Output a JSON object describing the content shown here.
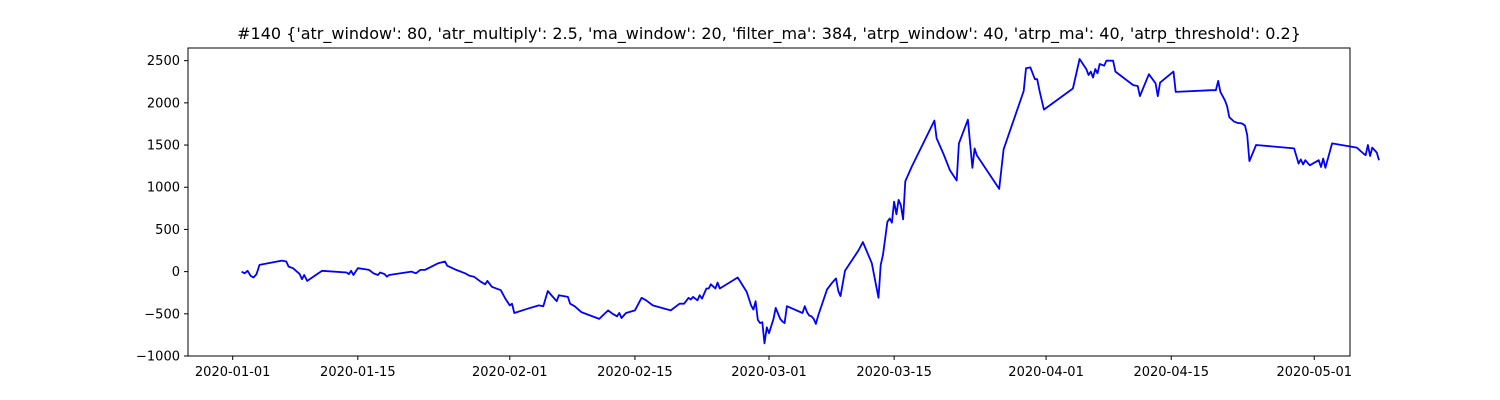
{
  "chart_data": {
    "type": "line",
    "title": "#140 {'atr_window': 80, 'atr_multiply': 2.5, 'ma_window': 20, 'filter_ma': 384, 'atrp_window': 40, 'atrp_ma': 40, 'atrp_threshold': 0.2}",
    "xlabel": "",
    "ylabel": "",
    "xlim": [
      "2019-12-27",
      "2020-05-05"
    ],
    "ylim": [
      -1000,
      2650
    ],
    "x_ticks": [
      "2020-01-01",
      "2020-01-15",
      "2020-02-01",
      "2020-02-15",
      "2020-03-01",
      "2020-03-15",
      "2020-04-01",
      "2020-04-15",
      "2020-05-01"
    ],
    "y_ticks": [
      -1000,
      -500,
      0,
      500,
      1000,
      1500,
      2000,
      2500
    ],
    "grid": false,
    "series": [
      {
        "color": "#0000ff",
        "points": [
          [
            "2020-01-02T00:00",
            0
          ],
          [
            "2020-01-02T08:00",
            -20
          ],
          [
            "2020-01-02T16:00",
            10
          ],
          [
            "2020-01-03T00:00",
            -50
          ],
          [
            "2020-01-03T08:00",
            -70
          ],
          [
            "2020-01-03T16:00",
            -30
          ],
          [
            "2020-01-04T00:00",
            80
          ],
          [
            "2020-01-06T12:00",
            130
          ],
          [
            "2020-01-07T00:00",
            120
          ],
          [
            "2020-01-07T06:00",
            60
          ],
          [
            "2020-01-07T18:00",
            40
          ],
          [
            "2020-01-08T12:00",
            -30
          ],
          [
            "2020-01-08T18:00",
            -90
          ],
          [
            "2020-01-09T00:00",
            -40
          ],
          [
            "2020-01-09T08:00",
            -110
          ],
          [
            "2020-01-11T00:00",
            10
          ],
          [
            "2020-01-13T18:00",
            -10
          ],
          [
            "2020-01-14T00:00",
            -30
          ],
          [
            "2020-01-14T06:00",
            10
          ],
          [
            "2020-01-14T12:00",
            -40
          ],
          [
            "2020-01-15T00:00",
            40
          ],
          [
            "2020-01-15T18:00",
            30
          ],
          [
            "2020-01-16T06:00",
            20
          ],
          [
            "2020-01-16T18:00",
            -20
          ],
          [
            "2020-01-17T06:00",
            -40
          ],
          [
            "2020-01-17T12:00",
            -10
          ],
          [
            "2020-01-18T00:00",
            -30
          ],
          [
            "2020-01-18T06:00",
            -60
          ],
          [
            "2020-01-18T12:00",
            -40
          ],
          [
            "2020-01-21T00:00",
            0
          ],
          [
            "2020-01-21T12:00",
            -20
          ],
          [
            "2020-01-22T00:00",
            20
          ],
          [
            "2020-01-22T12:00",
            20
          ],
          [
            "2020-01-24T00:00",
            100
          ],
          [
            "2020-01-24T18:00",
            120
          ],
          [
            "2020-01-25T00:00",
            70
          ],
          [
            "2020-01-26T00:00",
            20
          ],
          [
            "2020-01-27T00:00",
            -20
          ],
          [
            "2020-01-27T12:00",
            -50
          ],
          [
            "2020-01-28T00:00",
            -60
          ],
          [
            "2020-01-28T18:00",
            -120
          ],
          [
            "2020-01-29T06:00",
            -150
          ],
          [
            "2020-01-29T12:00",
            -110
          ],
          [
            "2020-01-30T00:00",
            -180
          ],
          [
            "2020-01-31T00:00",
            -220
          ],
          [
            "2020-01-31T12:00",
            -320
          ],
          [
            "2020-02-01T00:00",
            -400
          ],
          [
            "2020-02-01T06:00",
            -380
          ],
          [
            "2020-02-01T12:00",
            -490
          ],
          [
            "2020-02-03T00:00",
            -440
          ],
          [
            "2020-02-04T06:00",
            -400
          ],
          [
            "2020-02-04T18:00",
            -410
          ],
          [
            "2020-02-05T06:00",
            -230
          ],
          [
            "2020-02-05T18:00",
            -290
          ],
          [
            "2020-02-06T06:00",
            -350
          ],
          [
            "2020-02-06T12:00",
            -280
          ],
          [
            "2020-02-07T12:00",
            -300
          ],
          [
            "2020-02-07T18:00",
            -380
          ],
          [
            "2020-02-08T06:00",
            -410
          ],
          [
            "2020-02-09T00:00",
            -480
          ],
          [
            "2020-02-11T00:00",
            -560
          ],
          [
            "2020-02-12T00:00",
            -460
          ],
          [
            "2020-02-12T12:00",
            -500
          ],
          [
            "2020-02-13T00:00",
            -530
          ],
          [
            "2020-02-13T06:00",
            -490
          ],
          [
            "2020-02-13T12:00",
            -550
          ],
          [
            "2020-02-14T00:00",
            -490
          ],
          [
            "2020-02-15T00:00",
            -460
          ],
          [
            "2020-02-15T18:00",
            -310
          ],
          [
            "2020-02-16T06:00",
            -340
          ],
          [
            "2020-02-17T00:00",
            -400
          ],
          [
            "2020-02-19T00:00",
            -460
          ],
          [
            "2020-02-20T00:00",
            -380
          ],
          [
            "2020-02-20T12:00",
            -380
          ],
          [
            "2020-02-21T00:00",
            -310
          ],
          [
            "2020-02-21T06:00",
            -330
          ],
          [
            "2020-02-21T12:00",
            -300
          ],
          [
            "2020-02-22T00:00",
            -340
          ],
          [
            "2020-02-22T06:00",
            -280
          ],
          [
            "2020-02-22T12:00",
            -320
          ],
          [
            "2020-02-23T00:00",
            -200
          ],
          [
            "2020-02-23T06:00",
            -200
          ],
          [
            "2020-02-23T12:00",
            -150
          ],
          [
            "2020-02-24T00:00",
            -200
          ],
          [
            "2020-02-24T06:00",
            -130
          ],
          [
            "2020-02-24T12:00",
            -200
          ],
          [
            "2020-02-26T12:00",
            -70
          ],
          [
            "2020-02-27T12:00",
            -240
          ],
          [
            "2020-02-28T00:00",
            -400
          ],
          [
            "2020-02-28T06:00",
            -450
          ],
          [
            "2020-02-28T12:00",
            -350
          ],
          [
            "2020-02-28T18:00",
            -570
          ],
          [
            "2020-02-29T00:00",
            -610
          ],
          [
            "2020-02-29T06:00",
            -600
          ],
          [
            "2020-02-29T12:00",
            -850
          ],
          [
            "2020-02-29T18:00",
            -660
          ],
          [
            "2020-03-01T00:00",
            -730
          ],
          [
            "2020-03-01T12:00",
            -560
          ],
          [
            "2020-03-01T18:00",
            -430
          ],
          [
            "2020-03-02T06:00",
            -560
          ],
          [
            "2020-03-02T12:00",
            -590
          ],
          [
            "2020-03-02T18:00",
            -610
          ],
          [
            "2020-03-03T00:00",
            -410
          ],
          [
            "2020-03-04T18:00",
            -490
          ],
          [
            "2020-03-05T00:00",
            -410
          ],
          [
            "2020-03-05T06:00",
            -480
          ],
          [
            "2020-03-05T12:00",
            -520
          ],
          [
            "2020-03-05T18:00",
            -530
          ],
          [
            "2020-03-06T00:00",
            -560
          ],
          [
            "2020-03-06T06:00",
            -620
          ],
          [
            "2020-03-06T12:00",
            -520
          ],
          [
            "2020-03-07T12:00",
            -210
          ],
          [
            "2020-03-08T00:00",
            -140
          ],
          [
            "2020-03-08T12:00",
            -80
          ],
          [
            "2020-03-08T18:00",
            -230
          ],
          [
            "2020-03-09T00:00",
            -290
          ],
          [
            "2020-03-09T12:00",
            10
          ],
          [
            "2020-03-11T00:00",
            250
          ],
          [
            "2020-03-11T12:00",
            350
          ],
          [
            "2020-03-12T12:00",
            100
          ],
          [
            "2020-03-13T06:00",
            -310
          ],
          [
            "2020-03-13T12:00",
            80
          ],
          [
            "2020-03-13T18:00",
            200
          ],
          [
            "2020-03-14T06:00",
            590
          ],
          [
            "2020-03-14T12:00",
            630
          ],
          [
            "2020-03-14T18:00",
            580
          ],
          [
            "2020-03-15T00:00",
            830
          ],
          [
            "2020-03-15T06:00",
            680
          ],
          [
            "2020-03-15T12:00",
            850
          ],
          [
            "2020-03-15T18:00",
            790
          ],
          [
            "2020-03-16T00:00",
            620
          ],
          [
            "2020-03-16T06:00",
            1070
          ],
          [
            "2020-03-17T00:00",
            1250
          ],
          [
            "2020-03-19T12:00",
            1790
          ],
          [
            "2020-03-19T18:00",
            1580
          ],
          [
            "2020-03-20T12:00",
            1400
          ],
          [
            "2020-03-21T06:00",
            1200
          ],
          [
            "2020-03-22T00:00",
            1080
          ],
          [
            "2020-03-22T06:00",
            1520
          ],
          [
            "2020-03-23T06:00",
            1800
          ],
          [
            "2020-03-23T18:00",
            1230
          ],
          [
            "2020-03-24T00:00",
            1460
          ],
          [
            "2020-03-24T06:00",
            1380
          ],
          [
            "2020-03-26T18:00",
            980
          ],
          [
            "2020-03-27T06:00",
            1450
          ],
          [
            "2020-03-29T12:00",
            2140
          ],
          [
            "2020-03-29T18:00",
            2410
          ],
          [
            "2020-03-30T06:00",
            2420
          ],
          [
            "2020-03-30T18:00",
            2280
          ],
          [
            "2020-03-31T00:00",
            2280
          ],
          [
            "2020-03-31T06:00",
            2150
          ],
          [
            "2020-03-31T18:00",
            1920
          ],
          [
            "2020-04-04T00:00",
            2170
          ],
          [
            "2020-04-04T18:00",
            2520
          ],
          [
            "2020-04-05T12:00",
            2400
          ],
          [
            "2020-04-05T18:00",
            2330
          ],
          [
            "2020-04-06T00:00",
            2370
          ],
          [
            "2020-04-06T06:00",
            2300
          ],
          [
            "2020-04-06T12:00",
            2400
          ],
          [
            "2020-04-06T18:00",
            2350
          ],
          [
            "2020-04-07T00:00",
            2460
          ],
          [
            "2020-04-07T12:00",
            2440
          ],
          [
            "2020-04-07T18:00",
            2500
          ],
          [
            "2020-04-08T12:00",
            2500
          ],
          [
            "2020-04-08T18:00",
            2370
          ],
          [
            "2020-04-10T18:00",
            2210
          ],
          [
            "2020-04-11T06:00",
            2200
          ],
          [
            "2020-04-11T12:00",
            2080
          ],
          [
            "2020-04-12T12:00",
            2340
          ],
          [
            "2020-04-13T06:00",
            2230
          ],
          [
            "2020-04-13T12:00",
            2080
          ],
          [
            "2020-04-13T18:00",
            2240
          ],
          [
            "2020-04-15T06:00",
            2370
          ],
          [
            "2020-04-15T12:00",
            2130
          ],
          [
            "2020-04-19T12:00",
            2150
          ],
          [
            "2020-04-20T00:00",
            2150
          ],
          [
            "2020-04-20T06:00",
            2260
          ],
          [
            "2020-04-20T12:00",
            2130
          ],
          [
            "2020-04-21T00:00",
            2030
          ],
          [
            "2020-04-21T06:00",
            1960
          ],
          [
            "2020-04-21T12:00",
            1830
          ],
          [
            "2020-04-22T00:00",
            1780
          ],
          [
            "2020-04-22T06:00",
            1770
          ],
          [
            "2020-04-22T12:00",
            1760
          ],
          [
            "2020-04-22T18:00",
            1760
          ],
          [
            "2020-04-23T00:00",
            1750
          ],
          [
            "2020-04-23T06:00",
            1730
          ],
          [
            "2020-04-23T12:00",
            1620
          ],
          [
            "2020-04-23T18:00",
            1310
          ],
          [
            "2020-04-24T12:00",
            1500
          ],
          [
            "2020-04-28T18:00",
            1460
          ],
          [
            "2020-04-29T06:00",
            1280
          ],
          [
            "2020-04-29T12:00",
            1330
          ],
          [
            "2020-04-29T18:00",
            1270
          ],
          [
            "2020-04-30T00:00",
            1320
          ],
          [
            "2020-04-30T12:00",
            1260
          ],
          [
            "2020-05-01T12:00",
            1320
          ],
          [
            "2020-05-01T18:00",
            1240
          ],
          [
            "2020-05-02T00:00",
            1340
          ],
          [
            "2020-05-02T06:00",
            1230
          ],
          [
            "2020-05-03T00:00",
            1520
          ],
          [
            "2020-05-05T18:00",
            1470
          ],
          [
            "2020-05-06T12:00",
            1400
          ],
          [
            "2020-05-06T18:00",
            1380
          ],
          [
            "2020-05-07T00:00",
            1500
          ],
          [
            "2020-05-07T06:00",
            1370
          ],
          [
            "2020-05-07T12:00",
            1470
          ],
          [
            "2020-05-08T00:00",
            1410
          ],
          [
            "2020-05-08T06:00",
            1320
          ]
        ]
      }
    ]
  }
}
